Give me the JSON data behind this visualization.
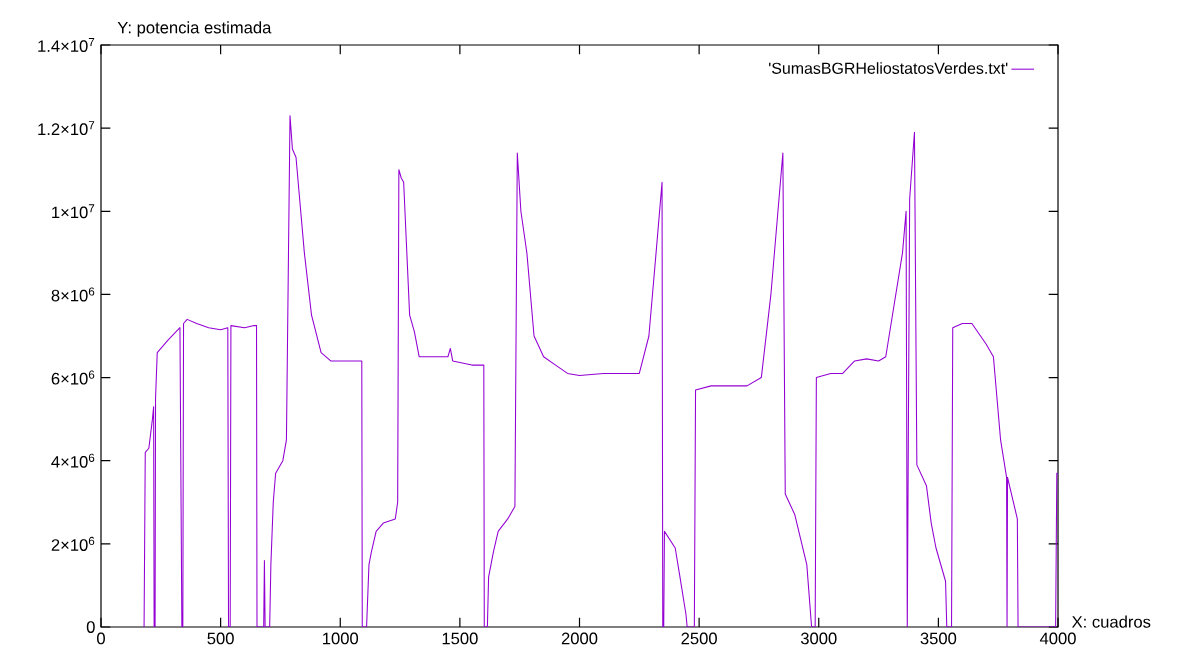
{
  "chart_data": {
    "type": "line",
    "xlabel": "X: cuadros",
    "ylabel": "Y: potencia estimada",
    "xlim": [
      0,
      4000
    ],
    "xticks": [
      0,
      500,
      1000,
      1500,
      2000,
      2500,
      3000,
      3500,
      4000
    ],
    "ylim": [
      0,
      14000000
    ],
    "yticks": [
      0,
      {
        "value": 2000000,
        "label": "2×10$^{6}$"
      },
      {
        "value": 4000000,
        "label": "4×10$^{6}$"
      },
      {
        "value": 6000000,
        "label": "6×10$^{6}$"
      },
      {
        "value": 8000000,
        "label": "8×10$^{6}$"
      },
      {
        "value": 10000000,
        "label": "1×10$^{7}$"
      },
      {
        "value": 12000000,
        "label": "1.2×10$^{7}$"
      },
      {
        "value": 14000000,
        "label": "1.4×10$^{7}$"
      }
    ],
    "grid": false,
    "legend": "top right",
    "marker": "none",
    "line_style": "solid",
    "series": [
      {
        "name": "'SumasBGRHeliostatosVerdes.txt'",
        "color": "#9400d3",
        "x": [
          180,
          185,
          200,
          215,
          220,
          222,
          226,
          228,
          235,
          280,
          330,
          338,
          342,
          345,
          360,
          400,
          450,
          500,
          530,
          533,
          540,
          543,
          600,
          640,
          650,
          652,
          680,
          683,
          686,
          705,
          710,
          720,
          730,
          760,
          775,
          790,
          800,
          815,
          850,
          880,
          920,
          960,
          1000,
          1080,
          1090,
          1092,
          1110,
          1120,
          1130,
          1150,
          1180,
          1230,
          1240,
          1245,
          1255,
          1265,
          1290,
          1310,
          1330,
          1400,
          1450,
          1460,
          1470,
          1550,
          1600,
          1602,
          1615,
          1620,
          1640,
          1660,
          1700,
          1730,
          1740,
          1755,
          1780,
          1810,
          1850,
          1900,
          1950,
          2000,
          2100,
          2250,
          2290,
          2320,
          2345,
          2348,
          2352,
          2355,
          2400,
          2420,
          2445,
          2450,
          2480,
          2485,
          2550,
          2700,
          2760,
          2800,
          2850,
          2860,
          2900,
          2950,
          2970,
          2985,
          2990,
          3050,
          3100,
          3150,
          3200,
          3250,
          3280,
          3350,
          3365,
          3370,
          3380,
          3400,
          3410,
          3450,
          3470,
          3490,
          3530,
          3535,
          3555,
          3560,
          3600,
          3640,
          3700,
          3730,
          3760,
          3785,
          3787,
          3789,
          3830,
          3833,
          3990,
          3995,
          4000
        ],
        "values": [
          0,
          4200000,
          4300000,
          5000000,
          5300000,
          0,
          0,
          5500000,
          6600000,
          6900000,
          7200000,
          0,
          0,
          7300000,
          7400000,
          7300000,
          7200000,
          7150000,
          7200000,
          0,
          0,
          7250000,
          7200000,
          7250000,
          7250000,
          0,
          0,
          1600000,
          0,
          0,
          1500000,
          3000000,
          3700000,
          4000000,
          4500000,
          12300000,
          11500000,
          11300000,
          9000000,
          7500000,
          6600000,
          6400000,
          6400000,
          6400000,
          6400000,
          0,
          0,
          1500000,
          1800000,
          2300000,
          2500000,
          2600000,
          3000000,
          11000000,
          10800000,
          10700000,
          7500000,
          7100000,
          6500000,
          6500000,
          6500000,
          6700000,
          6400000,
          6300000,
          6300000,
          0,
          0,
          1200000,
          1800000,
          2300000,
          2600000,
          2900000,
          11400000,
          10000000,
          9000000,
          7000000,
          6500000,
          6300000,
          6100000,
          6050000,
          6100000,
          6100000,
          7000000,
          9000000,
          10700000,
          0,
          0,
          2300000,
          1900000,
          1200000,
          300000,
          0,
          0,
          5700000,
          5800000,
          5800000,
          6000000,
          8000000,
          11400000,
          3200000,
          2700000,
          1500000,
          0,
          0,
          6000000,
          6100000,
          6100000,
          6400000,
          6450000,
          6400000,
          6500000,
          9000000,
          10000000,
          0,
          10300000,
          11900000,
          3900000,
          3400000,
          2500000,
          1900000,
          1100000,
          0,
          0,
          7200000,
          7300000,
          7300000,
          6800000,
          6500000,
          4500000,
          3600000,
          0,
          3600000,
          2600000,
          0,
          0,
          3700000,
          3700000
        ]
      }
    ]
  }
}
